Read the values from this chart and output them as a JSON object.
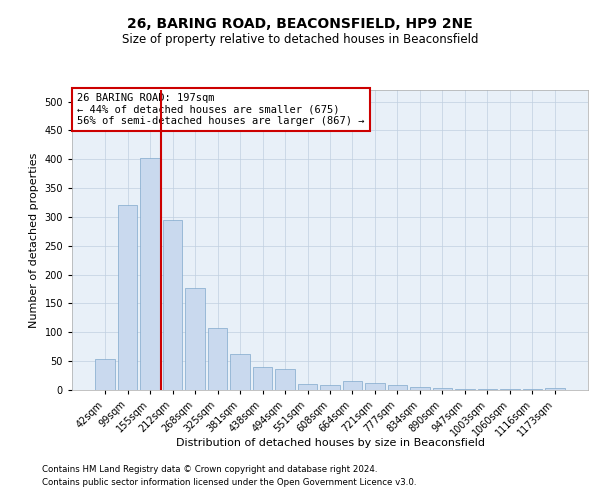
{
  "title": "26, BARING ROAD, BEACONSFIELD, HP9 2NE",
  "subtitle": "Size of property relative to detached houses in Beaconsfield",
  "xlabel": "Distribution of detached houses by size in Beaconsfield",
  "ylabel": "Number of detached properties",
  "footer_line1": "Contains HM Land Registry data © Crown copyright and database right 2024.",
  "footer_line2": "Contains public sector information licensed under the Open Government Licence v3.0.",
  "annotation_title": "26 BARING ROAD: 197sqm",
  "annotation_line1": "← 44% of detached houses are smaller (675)",
  "annotation_line2": "56% of semi-detached houses are larger (867) →",
  "bar_color": "#c9d9ee",
  "bar_edge_color": "#7fa8cc",
  "vline_color": "#cc0000",
  "annotation_box_color": "#cc0000",
  "background_color": "#ffffff",
  "axes_background_color": "#e8f0f8",
  "grid_color": "#c0cfe0",
  "categories": [
    "42sqm",
    "99sqm",
    "155sqm",
    "212sqm",
    "268sqm",
    "325sqm",
    "381sqm",
    "438sqm",
    "494sqm",
    "551sqm",
    "608sqm",
    "664sqm",
    "721sqm",
    "777sqm",
    "834sqm",
    "890sqm",
    "947sqm",
    "1003sqm",
    "1060sqm",
    "1116sqm",
    "1173sqm"
  ],
  "values": [
    53,
    320,
    402,
    295,
    177,
    107,
    63,
    40,
    36,
    11,
    9,
    15,
    13,
    9,
    6,
    4,
    1,
    2,
    1,
    1,
    4
  ],
  "vline_index": 2.5,
  "ylim": [
    0,
    520
  ],
  "yticks": [
    0,
    50,
    100,
    150,
    200,
    250,
    300,
    350,
    400,
    450,
    500
  ],
  "figsize": [
    6.0,
    5.0
  ],
  "dpi": 100,
  "title_fontsize": 10,
  "subtitle_fontsize": 8.5,
  "axis_label_fontsize": 8,
  "tick_fontsize": 7,
  "annotation_fontsize": 7.5,
  "footer_fontsize": 6.2
}
